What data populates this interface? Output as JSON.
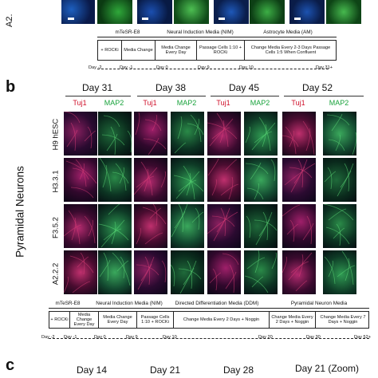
{
  "panel_a": {
    "row_label": "A2.",
    "timeline": {
      "stages": [
        "mTeSR-E8",
        "Neural Induction Media (NIM)",
        "Astrocyte Media (AM)"
      ],
      "cells": [
        "+ ROCKi",
        "Media Change",
        "Media Change Every Day",
        "Passage Cells 1:10 + ROCKi",
        "Change Media Every 2-3 Days Passage Cells 1:5 When Confluent"
      ],
      "days": [
        "Day -2",
        "Day -1",
        "Day 0",
        "Day 9",
        "Day 10",
        "Day 31+"
      ]
    }
  },
  "panel_b": {
    "letter": "b",
    "title": "Pyramidal Neurons",
    "days": [
      "Day 31",
      "Day 38",
      "Day 45",
      "Day 52"
    ],
    "markers": {
      "red": "Tuj1",
      "green": "MAP2"
    },
    "marker_colors": {
      "red": "#d0102a",
      "green": "#19a33c"
    },
    "lines": [
      "H9 hESC",
      "H3.3.1",
      "F3.5.2",
      "A2.2.2"
    ],
    "timeline": {
      "stages": [
        "mTeSR-E8",
        "Neural Induction Media (NIM)",
        "Directed Differentiation Media (DDM)",
        "Pyramidal Neuron Media"
      ],
      "cells": [
        "+ ROCKi",
        "Media Change Every Day",
        "Media Change Every Day",
        "Passage Cells 1:10 + ROCKi",
        "Change Media Every 2 Days + Noggin",
        "Change Media Every 2 Days + Noggin",
        "Change Media Every 7 Days + Noggin",
        "Change Media Every 7 Days"
      ],
      "days": [
        "Day -2",
        "Day -1",
        "Day 0",
        "Day 9",
        "Day 10",
        "Day 20",
        "Day 30",
        "Day 52+"
      ]
    }
  },
  "panel_c": {
    "letter": "c",
    "days": [
      "Day 14",
      "Day 21",
      "Day 28",
      "Day 21 (Zoom)"
    ]
  }
}
